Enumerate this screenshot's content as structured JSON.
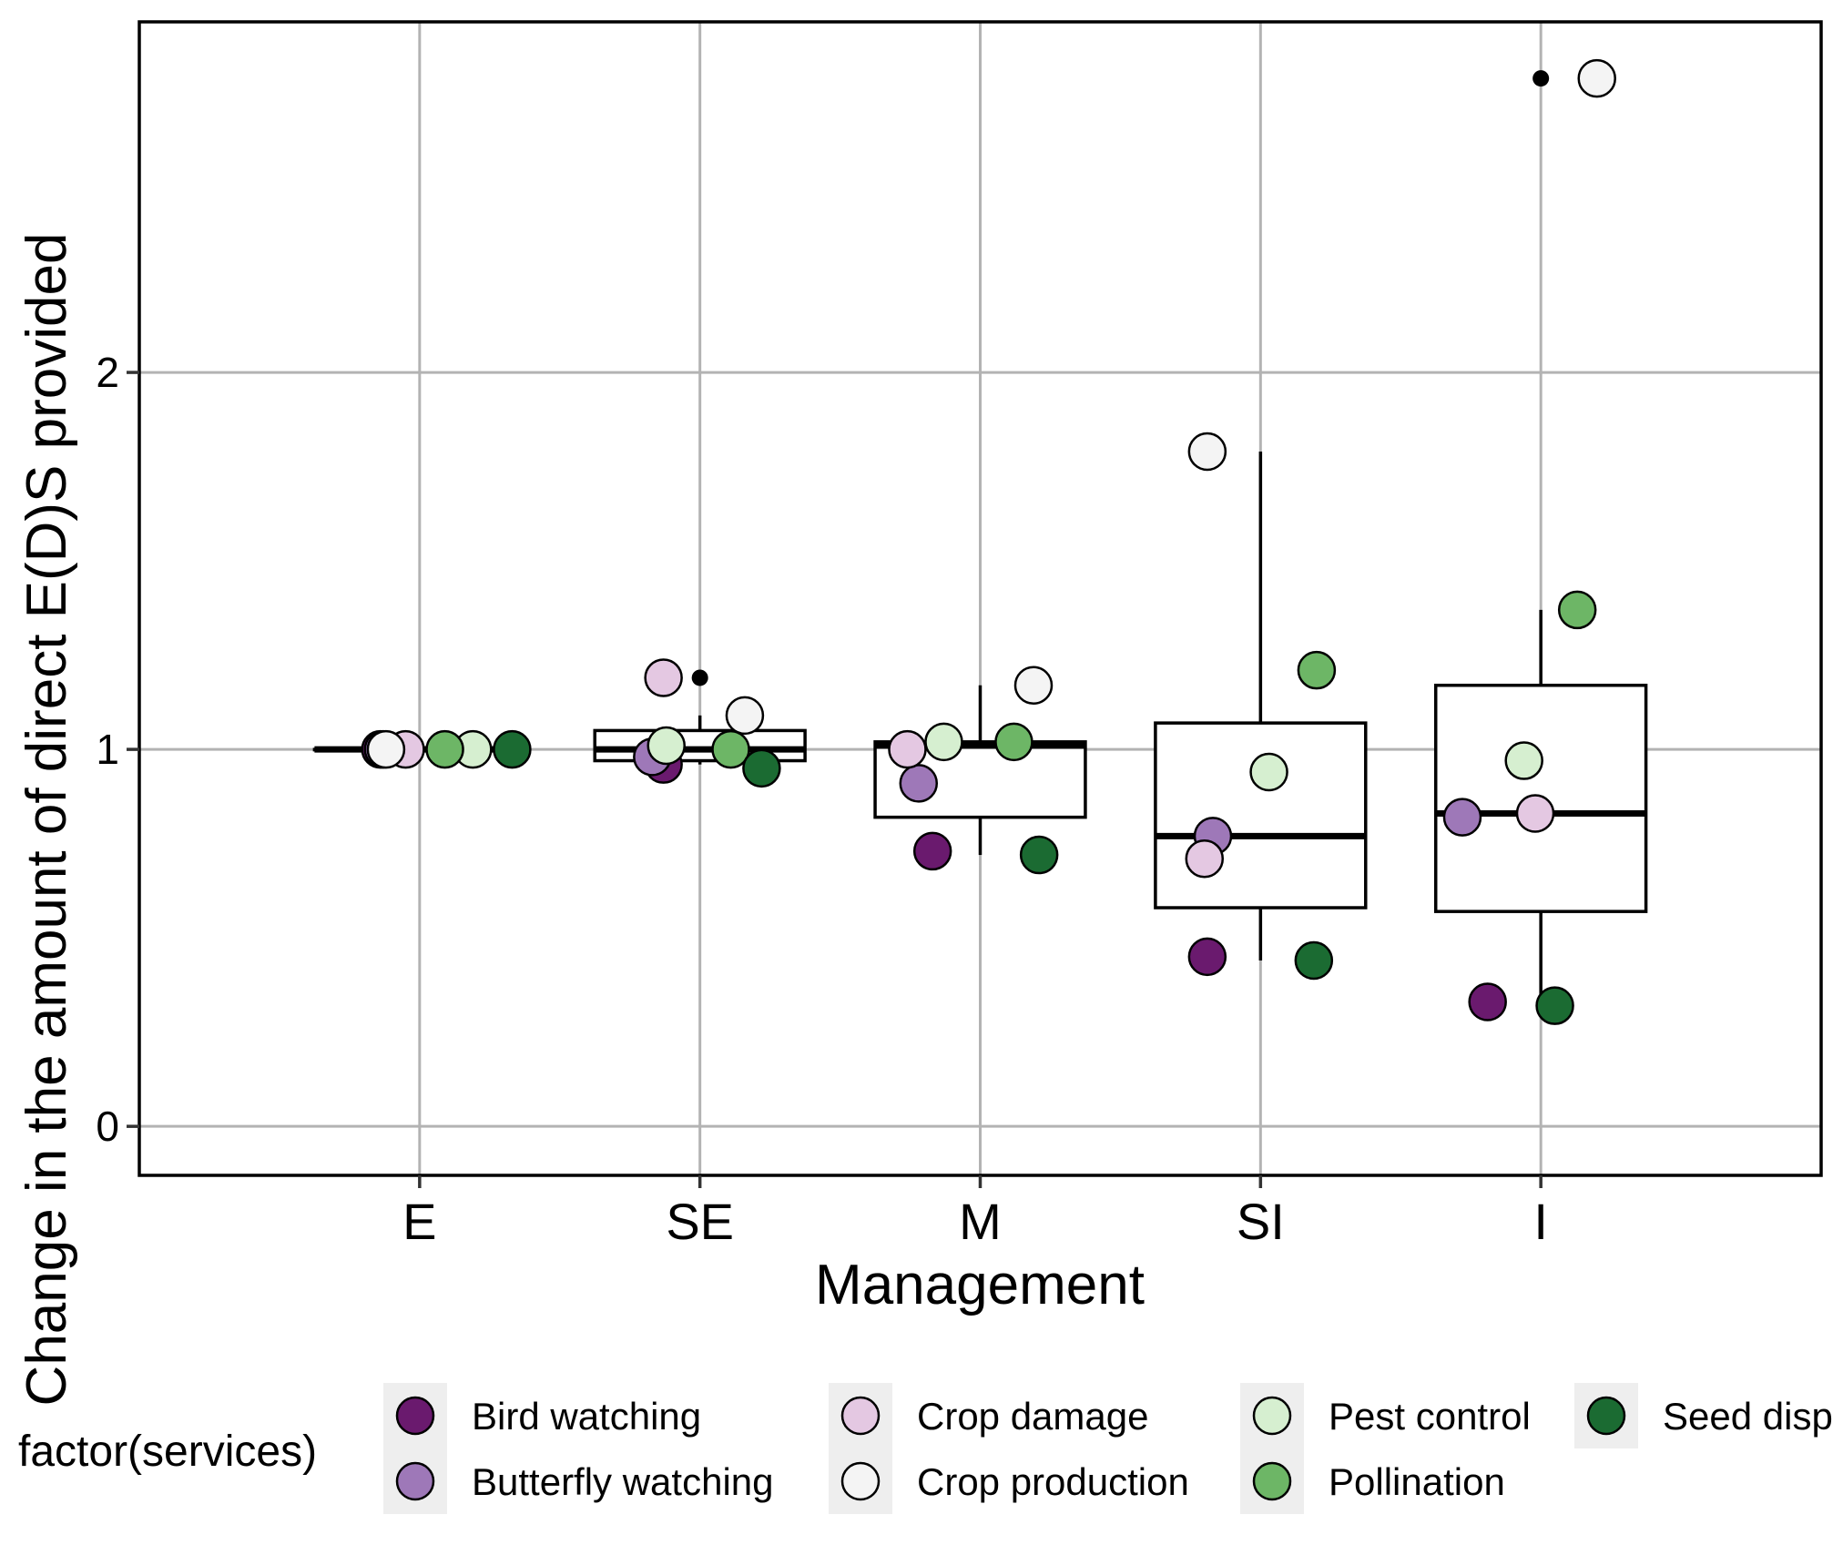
{
  "chart_data": {
    "type": "boxplot",
    "title": "",
    "xlabel": "Management",
    "ylabel": "Change in the amount of direct E(D)S provided",
    "categories": [
      "E",
      "SE",
      "M",
      "SI",
      "I"
    ],
    "yticks": [
      0,
      1,
      2
    ],
    "ylim": [
      -0.13,
      2.93
    ],
    "grid": true,
    "legend_position": "bottom",
    "legend_title": "factor(services)",
    "boxes": [
      {
        "category": "E",
        "q1": 1.0,
        "median": 1.0,
        "q3": 1.0,
        "whisker_low": 1.0,
        "whisker_high": 1.0,
        "outliers": []
      },
      {
        "category": "SE",
        "q1": 0.97,
        "median": 1.0,
        "q3": 1.05,
        "whisker_low": 0.96,
        "whisker_high": 1.09,
        "outliers": [
          1.19
        ]
      },
      {
        "category": "M",
        "q1": 0.82,
        "median": 1.01,
        "q3": 1.02,
        "whisker_low": 0.72,
        "whisker_high": 1.17,
        "outliers": []
      },
      {
        "category": "SI",
        "q1": 0.58,
        "median": 0.77,
        "q3": 1.07,
        "whisker_low": 0.44,
        "whisker_high": 1.79,
        "outliers": []
      },
      {
        "category": "I",
        "q1": 0.57,
        "median": 0.83,
        "q3": 1.17,
        "whisker_low": 0.32,
        "whisker_high": 1.37,
        "outliers": [
          2.78
        ]
      }
    ],
    "series": [
      {
        "name": "Bird watching",
        "color": "#6a1a6e",
        "values": [
          1.0,
          0.96,
          0.73,
          0.45,
          0.33
        ],
        "jitter": [
          -0.14,
          -0.13,
          -0.17,
          -0.19,
          -0.19
        ]
      },
      {
        "name": "Butterfly watching",
        "color": "#9e78b8",
        "values": [
          1.0,
          0.98,
          0.91,
          0.77,
          0.82
        ],
        "jitter": [
          -0.13,
          -0.17,
          -0.22,
          -0.17,
          -0.28
        ]
      },
      {
        "name": "Crop damage",
        "color": "#e4c8e2",
        "values": [
          1.0,
          1.19,
          1.0,
          0.71,
          0.83
        ],
        "jitter": [
          -0.05,
          -0.13,
          -0.26,
          -0.2,
          -0.02
        ]
      },
      {
        "name": "Crop production",
        "color": "#f4f4f4",
        "values": [
          1.0,
          1.09,
          1.17,
          1.79,
          2.78
        ],
        "jitter": [
          -0.12,
          0.16,
          0.19,
          -0.19,
          0.2
        ]
      },
      {
        "name": "Pest control",
        "color": "#d6efd0",
        "values": [
          1.0,
          1.01,
          1.02,
          0.94,
          0.97
        ],
        "jitter": [
          0.19,
          -0.12,
          -0.13,
          0.03,
          -0.06
        ]
      },
      {
        "name": "Pollination",
        "color": "#6db666",
        "values": [
          1.0,
          1.0,
          1.02,
          1.21,
          1.37
        ],
        "jitter": [
          0.09,
          0.11,
          0.12,
          0.2,
          0.13
        ]
      },
      {
        "name": "Seed disp",
        "color": "#1b6b32",
        "values": [
          1.0,
          0.95,
          0.72,
          0.44,
          0.32
        ],
        "jitter": [
          0.33,
          0.22,
          0.21,
          0.19,
          0.05
        ]
      }
    ]
  }
}
